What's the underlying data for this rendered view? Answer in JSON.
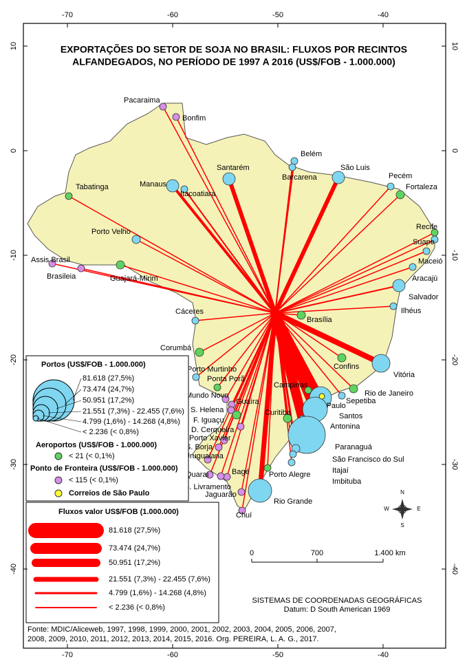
{
  "title": [
    "EXPORTAÇÕES DO SETOR DE SOJA NO BRASIL: FLUXOS POR RECINTOS",
    "ALFANDEGADOS, NO PERÍODO DE 1997 A 2016 (US$/FOB - 1.000.000)"
  ],
  "lon_ticks": [
    -70,
    -60,
    -50,
    -40
  ],
  "lat_ticks": [
    10,
    0,
    -10,
    -20,
    -30,
    -40
  ],
  "places": [
    "Pacaraima",
    "Bonfim",
    "Belém",
    "Barcarena",
    "São Luis",
    "Pecém",
    "Fortaleza",
    "Santarém",
    "Manaus",
    "Itacoatiara",
    "Tabatinga",
    "Recife",
    "Suape",
    "Maceió",
    "Porto Velho",
    "Aracajú",
    "Assis Brasil",
    "Brasileia",
    "Guajará-Mirim",
    "Salvador",
    "Ilhéus",
    "Cáceres",
    "Brasília",
    "Corumbá",
    "Confins",
    "Vitória",
    "Porto Murtinho",
    "Ponta Porã",
    "Campinas",
    "Rio de Janeiro",
    "Mundo Novo",
    "Guaíra",
    "São Paulo",
    "Sepetiba",
    "S. Helena",
    "Curitiba",
    "Santos",
    "F. Iguaçu",
    "D. Cerqueira",
    "Antonina",
    "Porto Xavier",
    "Paranaguá",
    "S. Borja",
    "Uruguaiana",
    "São Francisco do Sul",
    "Itajaí",
    "Quaraí",
    "Bagé",
    "Porto Alegre",
    "Imbituba",
    "S. Livramento",
    "Jaguarão",
    "Rio Grande",
    "Chuí"
  ],
  "legend": {
    "ports": {
      "title": "Portos (US$/FOB - 1.000.000)",
      "items": [
        "81.618 (27,5%)",
        "73.474 (24,7%)",
        "50.951 (17,2%)",
        "21.551 (7,3%) - 22.455 (7,6%)",
        "4.799 (1,6%) - 14.268 (4,8%)",
        "< 2.236 (< 0,8%)"
      ]
    },
    "airports": {
      "title": "Aeroportos (US$/FOB - 1.000.000)",
      "item": "< 21 (< 0,1%)"
    },
    "border": {
      "title": "Ponto de Fronteira (US$/FOB - 1.000.000)",
      "item": "< 115 (< 0,1%)"
    },
    "correios": "Correios de São Paulo",
    "flows": {
      "title": "Fluxos valor US$/FOB (1.000.000)",
      "items": [
        "81.618 (27,5%)",
        "73.474 (24,7%)",
        "50.951 (17,2%)",
        "21.551 (7,3%) - 22.455 (7,6%)",
        "4.799 (1,6%) - 14.268 (4,8%)",
        "< 2.236 (< 0,8%)"
      ]
    }
  },
  "scale": [
    "0",
    "700",
    "1.400 km"
  ],
  "compass": [
    "N",
    "S",
    "E",
    "W"
  ],
  "crs": [
    "SISTEMAS DE COORDENADAS GEOGRÁFICAS",
    "Datum: D South American 1969"
  ],
  "source": [
    "Fonte: MDIC/Aliceweb, 1997, 1998, 1999, 2000, 2001, 2002, 2003, 2004, 2005, 2006, 2007,",
    "2008, 2009, 2010, 2011, 2012, 2013, 2014, 2015, 2016. Org. PEREIRA, L. A. G., 2017."
  ]
}
